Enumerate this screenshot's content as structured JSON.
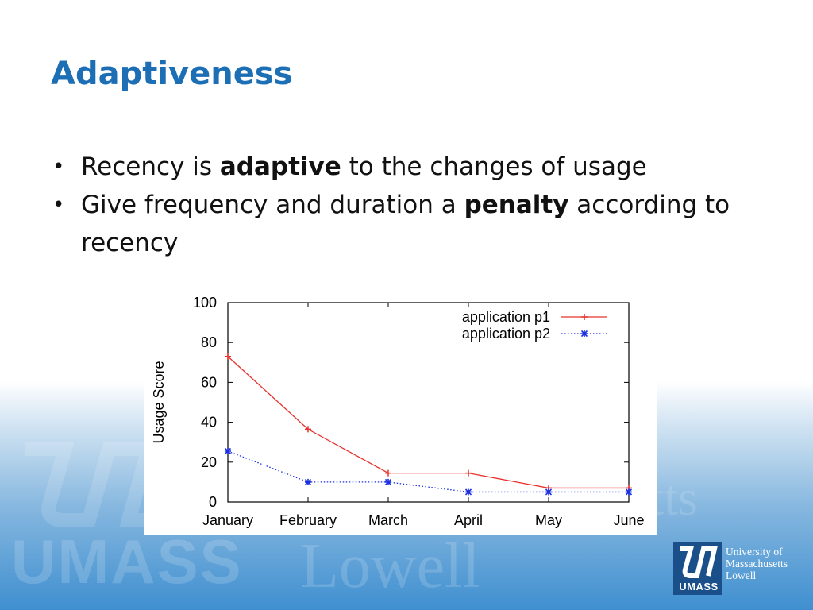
{
  "slide": {
    "title": "Adaptiveness",
    "bullets": [
      {
        "pre": "Recency is ",
        "bold": "adaptive",
        "post": " to the changes of usage"
      },
      {
        "pre": "Give frequency and duration a ",
        "bold": "penalty",
        "post": " according to recency"
      }
    ],
    "bullet_symbol": "•"
  },
  "branding": {
    "logo_mark": "UMASS",
    "logo_lines": [
      "University of",
      "Massachusetts",
      "Lowell"
    ],
    "watermark_umass": "UMASS",
    "watermark_lowell": "Lowell",
    "watermark_fragment": "etts"
  },
  "colors": {
    "title": "#1d6fb5",
    "series_p1": "#e8302a",
    "series_p2": "#1a2fe0",
    "brand_blue": "#1a4f8a"
  },
  "chart_data": {
    "type": "line",
    "title": "",
    "xlabel": "",
    "ylabel": "Usage Score",
    "categories": [
      "January",
      "February",
      "March",
      "April",
      "May",
      "June"
    ],
    "ylim": [
      0,
      100
    ],
    "yticks": [
      0,
      20,
      40,
      60,
      80,
      100
    ],
    "grid": false,
    "legend_position": "top-right",
    "series": [
      {
        "name": "application p1",
        "values": [
          73,
          36.5,
          14.5,
          14.5,
          7,
          7
        ],
        "color": "#e8302a",
        "style": "solid",
        "marker": "plus"
      },
      {
        "name": "application p2",
        "values": [
          25.5,
          10,
          10,
          5,
          5,
          5
        ],
        "color": "#1a2fe0",
        "style": "dotted",
        "marker": "star"
      }
    ]
  }
}
